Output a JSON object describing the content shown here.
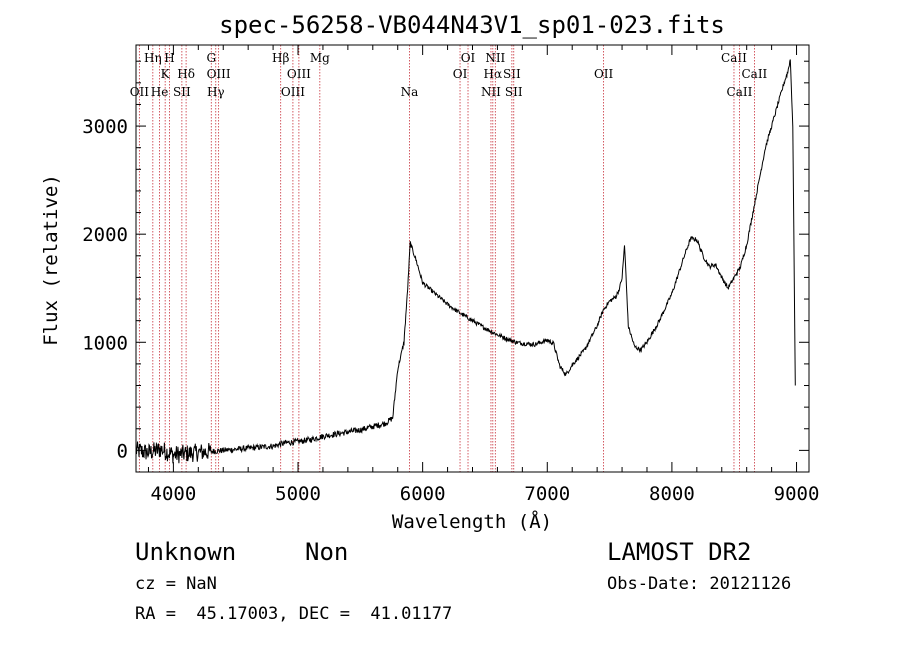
{
  "chart_data": {
    "type": "line",
    "title": "spec-56258-VB044N43V1_sp01-023.fits",
    "xlabel": "Wavelength (Å)",
    "ylabel": "Flux (relative)",
    "xlim": [
      3700,
      9100
    ],
    "ylim": [
      -200,
      3750
    ],
    "x_ticks": [
      4000,
      5000,
      6000,
      7000,
      8000,
      9000
    ],
    "y_ticks": [
      0,
      1000,
      2000,
      3000
    ],
    "series": [
      {
        "x": [
          3700,
          3800,
          3900,
          4000,
          4100,
          4200,
          4300,
          4400,
          4500,
          4600,
          4700,
          4800,
          4900,
          5000,
          5100,
          5200,
          5300,
          5400,
          5500,
          5600,
          5700,
          5760,
          5800,
          5850,
          5880,
          5900,
          5950,
          6000,
          6100,
          6200,
          6300,
          6400,
          6500,
          6600,
          6700,
          6750,
          6800,
          6900,
          7000,
          7050,
          7100,
          7150,
          7200,
          7300,
          7400,
          7450,
          7500,
          7550,
          7580,
          7600,
          7620,
          7650,
          7700,
          7750,
          7800,
          7900,
          8000,
          8100,
          8150,
          8200,
          8250,
          8300,
          8350,
          8400,
          8450,
          8500,
          8550,
          8600,
          8650,
          8700,
          8750,
          8800,
          8850,
          8900,
          8930,
          8950,
          8970,
          8990
        ],
        "y": [
          0,
          -20,
          10,
          -40,
          -30,
          -20,
          -10,
          0,
          10,
          20,
          30,
          40,
          70,
          80,
          100,
          130,
          150,
          170,
          190,
          220,
          250,
          300,
          750,
          1000,
          1500,
          1920,
          1750,
          1550,
          1450,
          1350,
          1270,
          1200,
          1130,
          1070,
          1020,
          1000,
          990,
          980,
          1020,
          990,
          780,
          700,
          790,
          930,
          1150,
          1300,
          1380,
          1420,
          1500,
          1600,
          1900,
          1150,
          960,
          930,
          1000,
          1200,
          1450,
          1800,
          1960,
          1950,
          1800,
          1700,
          1720,
          1600,
          1500,
          1600,
          1700,
          1900,
          2200,
          2500,
          2800,
          3000,
          3200,
          3400,
          3500,
          3620,
          3000,
          600
        ]
      }
    ],
    "line_color": "#000000",
    "marker_color": "#c8323c",
    "grid": false,
    "legend": "none",
    "lines": [
      {
        "x": 3727,
        "labels": [
          {
            "text": "OII",
            "row": 3
          }
        ]
      },
      {
        "x": 3835,
        "labels": [
          {
            "text": "Hη",
            "row": 1
          }
        ]
      },
      {
        "x": 3889,
        "labels": [
          {
            "text": "He",
            "row": 3
          }
        ]
      },
      {
        "x": 3934,
        "labels": [
          {
            "text": "K",
            "row": 2
          }
        ]
      },
      {
        "x": 3969,
        "labels": [
          {
            "text": "H",
            "row": 1
          }
        ]
      },
      {
        "x": 4068,
        "labels": [
          {
            "text": "SII",
            "row": 3
          }
        ]
      },
      {
        "x": 4102,
        "labels": [
          {
            "text": "Hδ",
            "row": 2
          }
        ]
      },
      {
        "x": 4304,
        "labels": [
          {
            "text": "G",
            "row": 1
          }
        ]
      },
      {
        "x": 4340,
        "labels": [
          {
            "text": "Hγ",
            "row": 3
          }
        ]
      },
      {
        "x": 4363,
        "labels": [
          {
            "text": "OIII",
            "row": 2
          }
        ]
      },
      {
        "x": 4861,
        "labels": [
          {
            "text": "Hβ",
            "row": 1
          }
        ]
      },
      {
        "x": 4959,
        "labels": [
          {
            "text": "OIII",
            "row": 3
          }
        ]
      },
      {
        "x": 5007,
        "labels": [
          {
            "text": "OIII",
            "row": 2
          }
        ]
      },
      {
        "x": 5175,
        "labels": [
          {
            "text": "Mg",
            "row": 1
          }
        ]
      },
      {
        "x": 5894,
        "labels": [
          {
            "text": "Na",
            "row": 3
          }
        ]
      },
      {
        "x": 6300,
        "labels": [
          {
            "text": "OI",
            "row": 2
          }
        ]
      },
      {
        "x": 6364,
        "labels": [
          {
            "text": "OI",
            "row": 1
          }
        ]
      },
      {
        "x": 6548,
        "labels": [
          {
            "text": "NII",
            "row": 3
          }
        ]
      },
      {
        "x": 6563,
        "labels": [
          {
            "text": "Hα",
            "row": 2
          }
        ]
      },
      {
        "x": 6583,
        "labels": [
          {
            "text": "NII",
            "row": 1
          }
        ]
      },
      {
        "x": 6716,
        "labels": [
          {
            "text": "SII",
            "row": 2
          }
        ]
      },
      {
        "x": 6731,
        "labels": [
          {
            "text": "SII",
            "row": 3
          }
        ]
      },
      {
        "x": 7452,
        "labels": [
          {
            "text": "OII",
            "row": 2
          }
        ]
      },
      {
        "x": 8498,
        "labels": [
          {
            "text": "CaII",
            "row": 1
          }
        ]
      },
      {
        "x": 8542,
        "labels": [
          {
            "text": "CaII",
            "row": 3
          }
        ]
      },
      {
        "x": 8662,
        "labels": [
          {
            "text": "CaII",
            "row": 2
          }
        ]
      }
    ]
  },
  "info": {
    "object_class": "Unknown",
    "subclass": "Non",
    "survey": "LAMOST DR2",
    "redshift": "cz = NaN",
    "obs_date": "Obs-Date: 20121126",
    "coords": "RA =  45.17003, DEC =  41.01177"
  }
}
